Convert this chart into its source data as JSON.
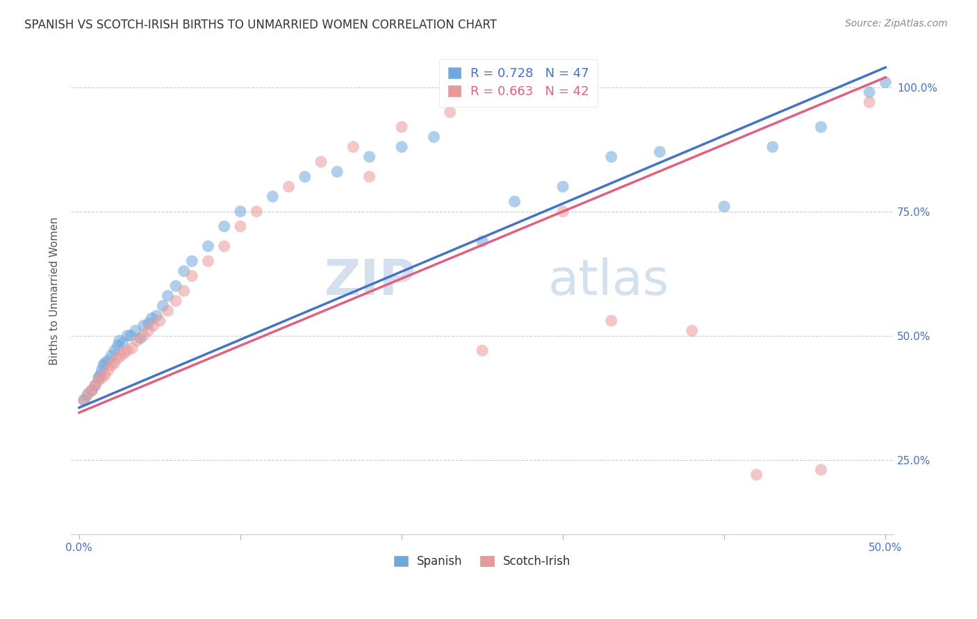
{
  "title": "SPANISH VS SCOTCH-IRISH BIRTHS TO UNMARRIED WOMEN CORRELATION CHART",
  "source": "Source: ZipAtlas.com",
  "ylabel": "Births to Unmarried Women",
  "watermark_zip": "ZIP",
  "watermark_atlas": "atlas",
  "blue_color": "#6fa8dc",
  "pink_color": "#ea9999",
  "blue_line_color": "#4472c4",
  "pink_line_color": "#e06080",
  "blue_label": "Spanish",
  "pink_label": "Scotch-Irish",
  "legend_blue": "R = 0.728   N = 47",
  "legend_pink": "R = 0.663   N = 42",
  "xlim": [
    -0.005,
    0.505
  ],
  "ylim": [
    0.1,
    1.08
  ],
  "ytick_positions": [
    0.25,
    0.5,
    0.75,
    1.0
  ],
  "ytick_labels": [
    "25.0%",
    "50.0%",
    "75.0%",
    "100.0%"
  ],
  "xtick_positions": [
    0.0,
    0.1,
    0.2,
    0.3,
    0.4,
    0.5
  ],
  "xtick_labels_shown": [
    "0.0%",
    "",
    "",
    "",
    "",
    "50.0%"
  ],
  "background_color": "#ffffff",
  "grid_color": "#cccccc",
  "title_color": "#333333",
  "source_color": "#888888",
  "ylabel_color": "#555555",
  "tick_label_color": "#4472c4",
  "blue_x": [
    0.003,
    0.005,
    0.008,
    0.01,
    0.012,
    0.013,
    0.014,
    0.015,
    0.016,
    0.018,
    0.02,
    0.022,
    0.024,
    0.025,
    0.027,
    0.03,
    0.032,
    0.035,
    0.038,
    0.04,
    0.043,
    0.045,
    0.048,
    0.052,
    0.055,
    0.06,
    0.065,
    0.07,
    0.08,
    0.09,
    0.1,
    0.12,
    0.14,
    0.16,
    0.18,
    0.2,
    0.22,
    0.25,
    0.27,
    0.3,
    0.33,
    0.36,
    0.4,
    0.43,
    0.46,
    0.49,
    0.5
  ],
  "blue_y": [
    0.37,
    0.38,
    0.39,
    0.4,
    0.415,
    0.42,
    0.43,
    0.44,
    0.445,
    0.45,
    0.46,
    0.47,
    0.48,
    0.49,
    0.485,
    0.5,
    0.5,
    0.51,
    0.495,
    0.52,
    0.525,
    0.535,
    0.54,
    0.56,
    0.58,
    0.6,
    0.63,
    0.65,
    0.68,
    0.72,
    0.75,
    0.78,
    0.82,
    0.83,
    0.86,
    0.88,
    0.9,
    0.69,
    0.77,
    0.8,
    0.86,
    0.87,
    0.76,
    0.88,
    0.92,
    0.99,
    1.01
  ],
  "pink_x": [
    0.003,
    0.006,
    0.008,
    0.01,
    0.012,
    0.014,
    0.016,
    0.018,
    0.02,
    0.022,
    0.024,
    0.026,
    0.028,
    0.03,
    0.033,
    0.036,
    0.04,
    0.043,
    0.046,
    0.05,
    0.055,
    0.06,
    0.065,
    0.07,
    0.08,
    0.09,
    0.1,
    0.11,
    0.13,
    0.15,
    0.17,
    0.2,
    0.23,
    0.27,
    0.3,
    0.25,
    0.33,
    0.18,
    0.38,
    0.42,
    0.46,
    0.49
  ],
  "pink_y": [
    0.37,
    0.385,
    0.39,
    0.4,
    0.41,
    0.415,
    0.42,
    0.43,
    0.44,
    0.445,
    0.455,
    0.46,
    0.465,
    0.47,
    0.475,
    0.49,
    0.5,
    0.51,
    0.52,
    0.53,
    0.55,
    0.57,
    0.59,
    0.62,
    0.65,
    0.68,
    0.72,
    0.75,
    0.8,
    0.85,
    0.88,
    0.92,
    0.95,
    0.99,
    0.75,
    0.47,
    0.53,
    0.82,
    0.51,
    0.22,
    0.23,
    0.97
  ],
  "blue_line_x0": 0.0,
  "blue_line_y0": 0.355,
  "blue_line_x1": 0.5,
  "blue_line_y1": 1.04,
  "pink_line_x0": 0.0,
  "pink_line_y0": 0.345,
  "pink_line_x1": 0.5,
  "pink_line_y1": 1.02
}
